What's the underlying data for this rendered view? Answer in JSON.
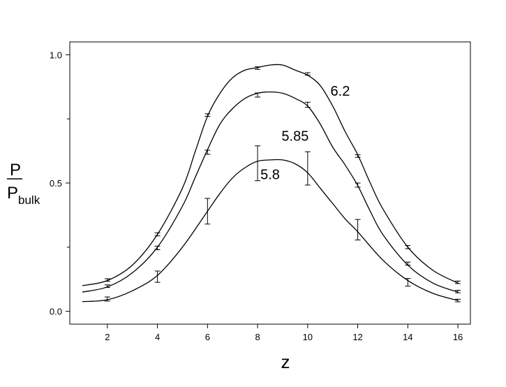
{
  "chart_data": {
    "type": "line",
    "xlabel": "z",
    "ylabel": {
      "main": "P",
      "denominator": "P",
      "subscript": "bulk"
    },
    "xlim": [
      0.5,
      16.5
    ],
    "ylim": [
      -0.05,
      1.05
    ],
    "x_ticks": [
      2,
      4,
      6,
      8,
      10,
      12,
      14,
      16
    ],
    "x_tick_labels": [
      "2",
      "4",
      "6",
      "8",
      "10",
      "12",
      "14",
      "16"
    ],
    "y_ticks": [
      0.0,
      0.5,
      1.0
    ],
    "y_tick_labels": [
      "0.0",
      "0.5",
      "1.0"
    ],
    "y_minor_ticks": [
      0.25,
      0.75
    ],
    "grid": false,
    "legend": "none",
    "series": [
      {
        "name": "6.2",
        "curve": {
          "x": [
            1,
            2,
            3,
            4,
            5,
            5.5,
            6,
            6.5,
            7,
            7.5,
            8,
            8.5,
            9,
            9.5,
            10,
            10.5,
            11,
            11.5,
            12,
            12.5,
            13,
            14,
            15,
            16
          ],
          "y": [
            0.1,
            0.12,
            0.18,
            0.3,
            0.48,
            0.62,
            0.76,
            0.85,
            0.91,
            0.94,
            0.95,
            0.96,
            0.96,
            0.94,
            0.92,
            0.88,
            0.8,
            0.7,
            0.61,
            0.5,
            0.4,
            0.25,
            0.16,
            0.11
          ]
        },
        "points": [
          {
            "x": 2,
            "y": 0.122,
            "err": 0.005
          },
          {
            "x": 4,
            "y": 0.3,
            "err": 0.006
          },
          {
            "x": 6,
            "y": 0.765,
            "err": 0.005
          },
          {
            "x": 8,
            "y": 0.948,
            "err": 0.005
          },
          {
            "x": 10,
            "y": 0.925,
            "err": 0.005
          },
          {
            "x": 12,
            "y": 0.605,
            "err": 0.005
          },
          {
            "x": 14,
            "y": 0.25,
            "err": 0.006
          },
          {
            "x": 16,
            "y": 0.113,
            "err": 0.005
          }
        ]
      },
      {
        "name": "5.85",
        "curve": {
          "x": [
            1,
            2,
            3,
            4,
            5,
            5.5,
            6,
            6.5,
            7,
            7.5,
            8,
            8.5,
            9,
            9.5,
            10,
            10.5,
            11,
            11.5,
            12,
            12.5,
            13,
            14,
            15,
            16
          ],
          "y": [
            0.075,
            0.095,
            0.15,
            0.25,
            0.41,
            0.52,
            0.63,
            0.73,
            0.79,
            0.83,
            0.85,
            0.855,
            0.85,
            0.83,
            0.8,
            0.73,
            0.64,
            0.57,
            0.49,
            0.39,
            0.3,
            0.18,
            0.11,
            0.075
          ]
        },
        "points": [
          {
            "x": 2,
            "y": 0.098,
            "err": 0.005
          },
          {
            "x": 4,
            "y": 0.247,
            "err": 0.007
          },
          {
            "x": 6,
            "y": 0.62,
            "err": 0.008
          },
          {
            "x": 8,
            "y": 0.843,
            "err": 0.008
          },
          {
            "x": 10,
            "y": 0.805,
            "err": 0.01
          },
          {
            "x": 12,
            "y": 0.492,
            "err": 0.008
          },
          {
            "x": 14,
            "y": 0.186,
            "err": 0.006
          },
          {
            "x": 16,
            "y": 0.077,
            "err": 0.005
          }
        ]
      },
      {
        "name": "5.8",
        "curve": {
          "x": [
            1,
            2,
            3,
            4,
            5,
            6,
            6.5,
            7,
            7.5,
            8,
            8.5,
            9,
            9.5,
            10,
            10.5,
            11,
            11.5,
            12,
            13,
            14,
            15,
            16
          ],
          "y": [
            0.038,
            0.045,
            0.08,
            0.14,
            0.25,
            0.39,
            0.46,
            0.52,
            0.56,
            0.585,
            0.59,
            0.59,
            0.575,
            0.54,
            0.48,
            0.42,
            0.36,
            0.31,
            0.2,
            0.12,
            0.07,
            0.042
          ]
        },
        "points": [
          {
            "x": 2,
            "y": 0.048,
            "err": 0.008
          },
          {
            "x": 4,
            "y": 0.135,
            "err": 0.022
          },
          {
            "x": 6,
            "y": 0.39,
            "err": 0.05
          },
          {
            "x": 8,
            "y": 0.577,
            "err": 0.068
          },
          {
            "x": 10,
            "y": 0.557,
            "err": 0.065
          },
          {
            "x": 12,
            "y": 0.318,
            "err": 0.04
          },
          {
            "x": 14,
            "y": 0.113,
            "err": 0.015
          },
          {
            "x": 16,
            "y": 0.042,
            "err": 0.005
          }
        ]
      }
    ],
    "annotations": [
      {
        "text": "6.2",
        "x": 11.3,
        "y": 0.84
      },
      {
        "text": "5.85",
        "x": 9.5,
        "y": 0.665
      },
      {
        "text": "5.8",
        "x": 8.5,
        "y": 0.515
      }
    ]
  }
}
